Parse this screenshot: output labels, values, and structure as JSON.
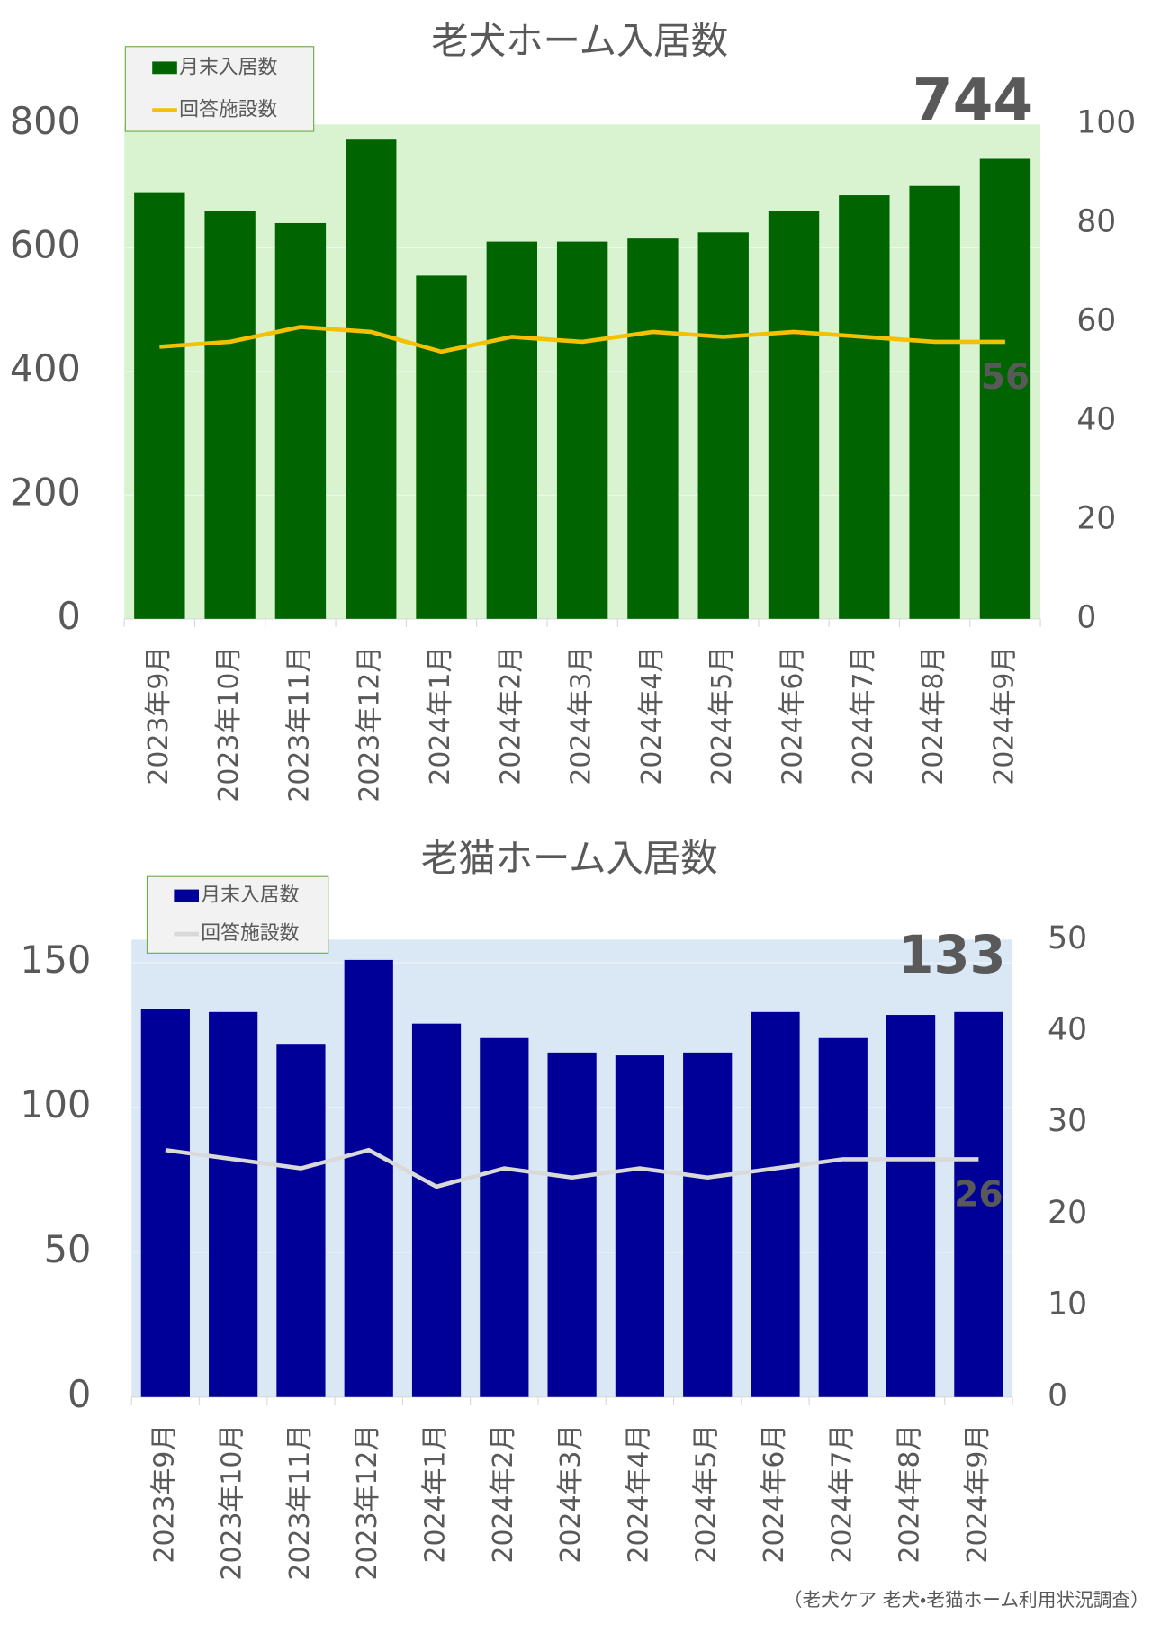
{
  "chart_data": [
    {
      "type": "bar",
      "title": "老犬ホーム入居数",
      "categories": [
        "2023年9月",
        "2023年10月",
        "2023年11月",
        "2023年12月",
        "2024年1月",
        "2024年2月",
        "2024年3月",
        "2024年4月",
        "2024年5月",
        "2024年6月",
        "2024年7月",
        "2024年8月",
        "2024年9月"
      ],
      "series": [
        {
          "name": "月末入居数",
          "type": "bar",
          "color": "#006400",
          "label_color": "#006400",
          "values": [
            690,
            660,
            640,
            775,
            555,
            610,
            610,
            615,
            625,
            660,
            685,
            700,
            744
          ]
        },
        {
          "name": "回答施設数",
          "type": "line",
          "axis": "y2",
          "color": "#f5c000",
          "label_color": "#f5c000",
          "values": [
            55,
            56,
            59,
            58,
            54,
            57,
            56,
            58,
            57,
            58,
            57,
            56,
            56
          ]
        }
      ],
      "ylim": [
        0,
        800
      ],
      "yticks": [
        0,
        200,
        400,
        600,
        800
      ],
      "y2lim": [
        0,
        100
      ],
      "y2ticks": [
        0,
        20,
        40,
        60,
        80,
        100
      ],
      "grid": true,
      "plot_background": "#d9f2d0"
    },
    {
      "type": "bar",
      "title": "老猫ホーム入居数",
      "categories": [
        "2023年9月",
        "2023年10月",
        "2023年11月",
        "2023年12月",
        "2024年1月",
        "2024年2月",
        "2024年3月",
        "2024年4月",
        "2024年5月",
        "2024年6月",
        "2024年7月",
        "2024年8月",
        "2024年9月"
      ],
      "series": [
        {
          "name": "月末入居数",
          "type": "bar",
          "color": "#000099",
          "label_color": "#000099",
          "values": [
            134,
            133,
            122,
            151,
            129,
            124,
            119,
            118,
            119,
            133,
            124,
            132,
            133
          ]
        },
        {
          "name": "回答施設数",
          "type": "line",
          "axis": "y2",
          "color": "#d9d9d9",
          "label_color": "#ffffff",
          "values": [
            27,
            26,
            25,
            27,
            23,
            25,
            24,
            25,
            24,
            25,
            26,
            26,
            26
          ]
        }
      ],
      "ylim": [
        0,
        158
      ],
      "yticks": [
        0,
        50,
        100,
        150
      ],
      "y2lim": [
        0,
        50
      ],
      "y2ticks": [
        0,
        10,
        20,
        30,
        40,
        50
      ],
      "grid": true,
      "plot_background": "#dae8f5"
    }
  ],
  "source": "（老犬ケア 老犬・老猫ホーム利用状況調査）"
}
